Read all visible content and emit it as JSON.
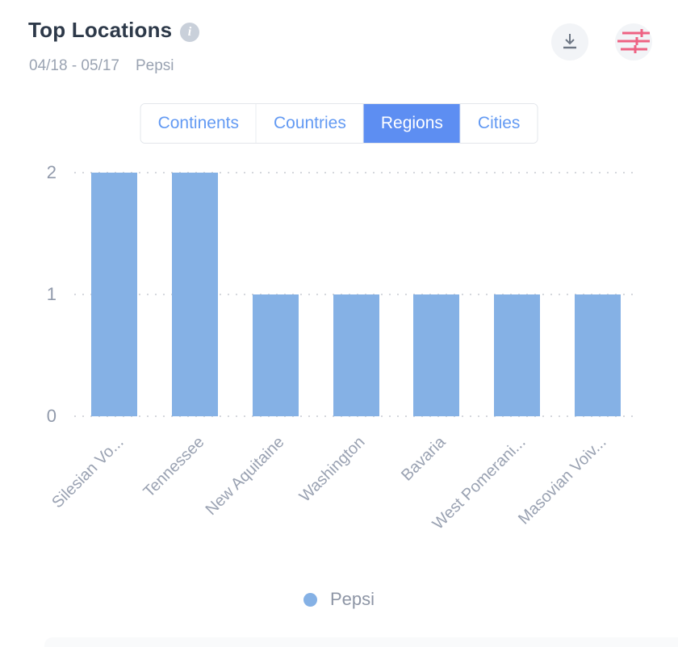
{
  "header": {
    "title": "Top Locations",
    "info_icon": "i",
    "date_range": "04/18 - 05/17",
    "subject": "Pepsi"
  },
  "toolbar": {
    "icons": [
      "download-icon",
      "sliders-icon"
    ],
    "download_icon_color": "#6d7684",
    "sliders_icon_color": "#ee6283",
    "button_bg": "#f2f4f7"
  },
  "tabs": [
    {
      "label": "Continents",
      "active": false
    },
    {
      "label": "Countries",
      "active": false
    },
    {
      "label": "Regions",
      "active": true
    },
    {
      "label": "Cities",
      "active": false
    }
  ],
  "chart_data": {
    "type": "bar",
    "title": "Top Locations",
    "categories": [
      "Silesian Vo...",
      "Tennessee",
      "New Aquitaine",
      "Washington",
      "Bavaria",
      "West Pomerani...",
      "Masovian Voiv..."
    ],
    "series": [
      {
        "name": "Pepsi",
        "values": [
          2,
          2,
          1,
          1,
          1,
          1,
          1
        ]
      }
    ],
    "xlabel": "",
    "ylabel": "",
    "ylim": [
      0,
      2
    ],
    "yticks": [
      0,
      1,
      2
    ],
    "grid": "horizontal-dotted",
    "bar_color": "#85b1e5",
    "legend_position": "bottom"
  },
  "legend": [
    {
      "label": "Pepsi",
      "color": "#85b1e5"
    }
  ],
  "colors": {
    "title": "#2d3949",
    "subtitle": "#9aa3b2",
    "active_tab_bg": "#5d8ef2",
    "tab_text": "#639af3",
    "axis_text": "#919aab",
    "gridline": "#d5d8dd"
  }
}
